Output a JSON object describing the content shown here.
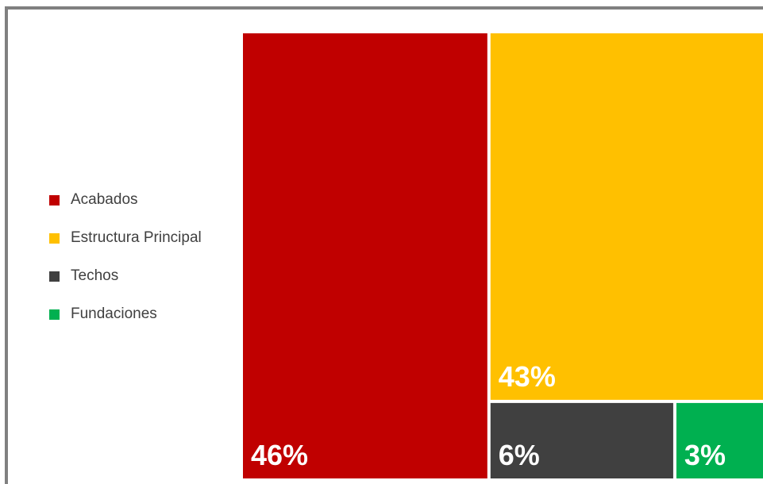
{
  "chart_data": {
    "type": "treemap",
    "title": "",
    "legend_position": "left",
    "legend": [
      {
        "label": "Acabados",
        "color": "#C00000"
      },
      {
        "label": "Estructura Principal",
        "color": "#FFC000"
      },
      {
        "label": "Techos",
        "color": "#404040"
      },
      {
        "label": "Fundaciones",
        "color": "#00B050"
      }
    ],
    "values": [
      {
        "name": "Acabados",
        "value": 46,
        "label": "46%",
        "color": "#C00000"
      },
      {
        "name": "Estructura Principal",
        "value": 43,
        "label": "43%",
        "color": "#FFC000"
      },
      {
        "name": "Techos",
        "value": 6,
        "label": "6%",
        "color": "#404040"
      },
      {
        "name": "Fundaciones",
        "value": 3,
        "label": "3%",
        "color": "#00B050"
      }
    ]
  }
}
